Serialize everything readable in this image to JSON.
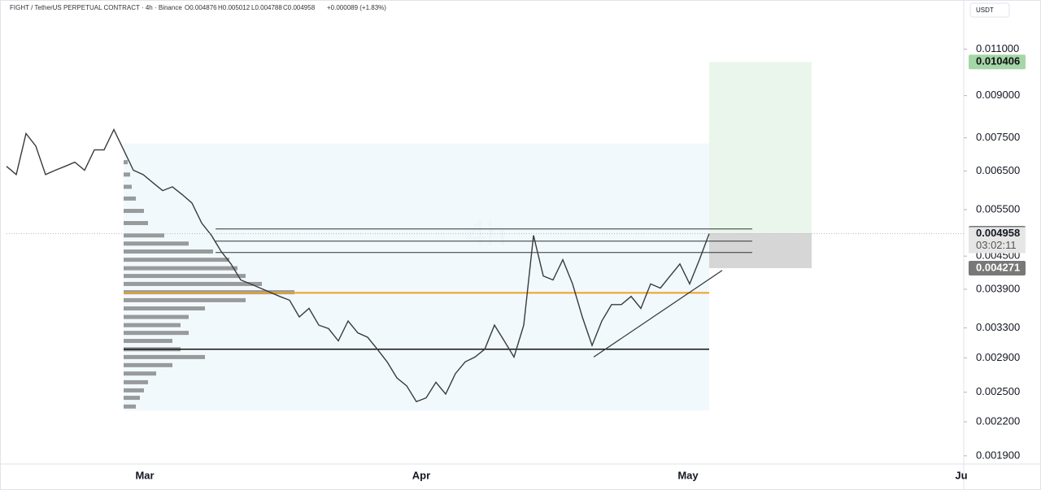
{
  "header": {
    "symbol": "FIGHT / TetherUS PERPETUAL CONTRACT · 4h · Binance",
    "open": "O0.004876",
    "high": "H0.005012",
    "low": "L0.004788",
    "close": "C0.004958",
    "change": "+0.000089 (+1.83%)"
  },
  "currency": "USDT",
  "watermark": "4h",
  "countdown": "03:02:11",
  "x_labels": [
    "Mar",
    "Apr",
    "May",
    "Ju"
  ],
  "chart_data": {
    "type": "line",
    "log_scale": true,
    "ylim": [
      0.00184,
      0.0136
    ],
    "yticks": [
      {
        "value": 0.0019,
        "label": "0.001900"
      },
      {
        "value": 0.0022,
        "label": "0.002200"
      },
      {
        "value": 0.0025,
        "label": "0.002500"
      },
      {
        "value": 0.0029,
        "label": "0.002900"
      },
      {
        "value": 0.0033,
        "label": "0.003300"
      },
      {
        "value": 0.0039,
        "label": "0.003900"
      },
      {
        "value": 0.0045,
        "label": "0.004500"
      },
      {
        "value": 0.0055,
        "label": "0.005500"
      },
      {
        "value": 0.0065,
        "label": "0.006500"
      },
      {
        "value": 0.0075,
        "label": "0.007500"
      },
      {
        "value": 0.009,
        "label": "0.009000"
      },
      {
        "value": 0.011,
        "label": "0.011000"
      }
    ],
    "series": [
      {
        "color": "#3a3a3a",
        "values": [
          0.00663,
          0.0064,
          0.00764,
          0.00724,
          0.0064,
          0.00652,
          0.00663,
          0.00675,
          0.00652,
          0.00712,
          0.00712,
          0.00777,
          0.00712,
          0.00652,
          0.0064,
          0.00618,
          0.00597,
          0.00607,
          0.00587,
          0.00566,
          0.00519,
          0.00492,
          0.00459,
          0.00435,
          0.00406,
          0.00399,
          0.00392,
          0.00385,
          0.00378,
          0.00372,
          0.00346,
          0.00359,
          0.00334,
          0.00329,
          0.00312,
          0.0034,
          0.00323,
          0.00317,
          0.00301,
          0.00285,
          0.00266,
          0.00257,
          0.0024,
          0.00244,
          0.00261,
          0.00248,
          0.00271,
          0.00285,
          0.00291,
          0.00301,
          0.00334,
          0.00312,
          0.00291,
          0.00334,
          0.00492,
          0.00413,
          0.00406,
          0.00443,
          0.00399,
          0.00346,
          0.00306,
          0.0034,
          0.00365,
          0.00365,
          0.00378,
          0.00359,
          0.00399,
          0.00392,
          0.00413,
          0.00435,
          0.00399,
          0.00443,
          0.004958
        ]
      }
    ],
    "volume_profile": {
      "color": "#7a7a7a",
      "prices": [
        0.00675,
        0.0064,
        0.00607,
        0.00577,
        0.00547,
        0.00519,
        0.00492,
        0.00475,
        0.00459,
        0.00443,
        0.00427,
        0.00413,
        0.00399,
        0.00385,
        0.00372,
        0.00359,
        0.00346,
        0.00334,
        0.00323,
        0.00312,
        0.00301,
        0.00291,
        0.00281,
        0.00271,
        0.00261,
        0.00252,
        0.00244,
        0.00235
      ],
      "volumes": [
        5,
        8,
        10,
        15,
        25,
        30,
        50,
        80,
        110,
        130,
        140,
        150,
        170,
        210,
        150,
        100,
        80,
        70,
        80,
        60,
        70,
        100,
        60,
        40,
        30,
        25,
        20,
        15
      ]
    },
    "range_box": [
      0.00732,
      0.00231
    ],
    "levels": [
      0.00506,
      0.0048,
      0.00457
    ],
    "poc": 0.00384,
    "support": 0.00301,
    "trendline": [
      0.00291,
      0.00423
    ],
    "position": {
      "target": 0.010406,
      "entry": 0.004968,
      "stop": 0.004271,
      "last": 0.004958
    }
  }
}
